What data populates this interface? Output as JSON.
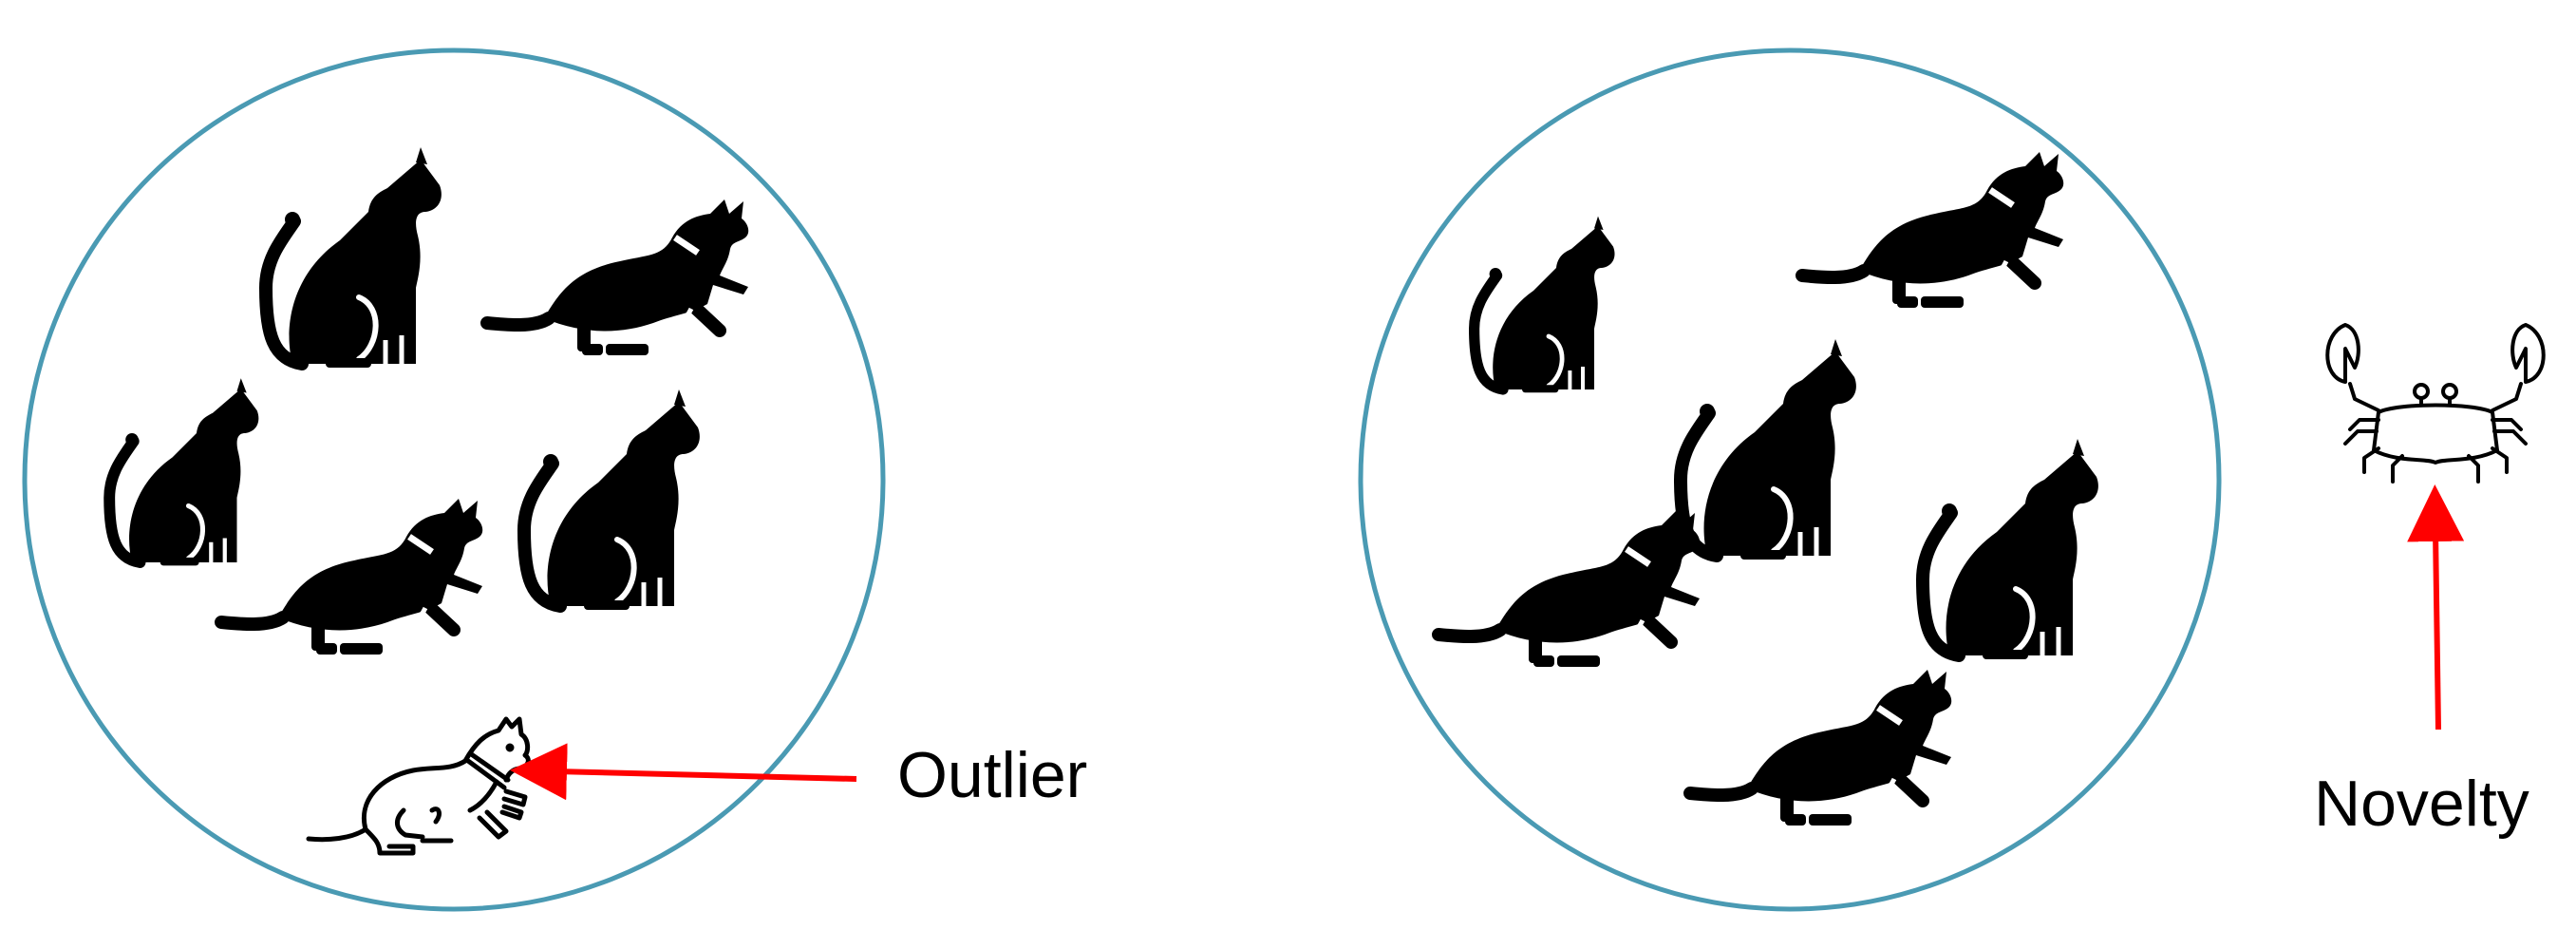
{
  "labels": {
    "outlier": "Outlier",
    "novelty": "Novelty"
  },
  "colors": {
    "circle": "#4A9AB3",
    "arrow": "#FF0000",
    "cat": "#000000",
    "outline": "#000000"
  },
  "icons": {
    "left_group": [
      "sitting-cat-icon",
      "crouching-cat-icon",
      "sitting-cat-icon",
      "crouching-cat-icon",
      "sitting-cat-icon",
      "outlined-cat-icon"
    ],
    "right_group": [
      "sitting-cat-icon",
      "crouching-cat-icon",
      "sitting-cat-icon",
      "crouching-cat-icon",
      "sitting-cat-icon",
      "crouching-cat-icon"
    ],
    "novelty": "crab-icon"
  }
}
